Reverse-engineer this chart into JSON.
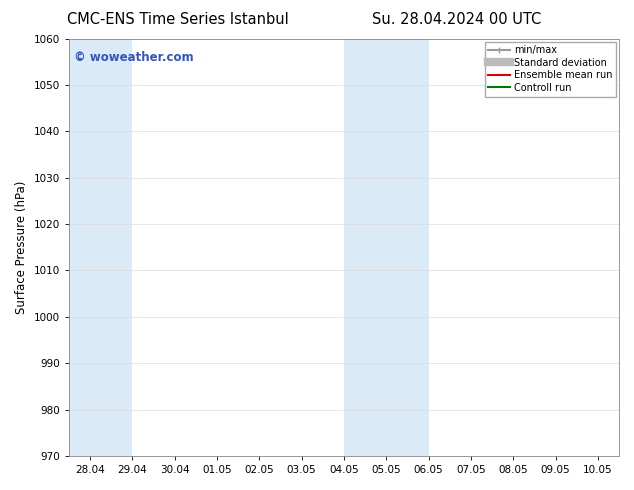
{
  "title_left": "CMC-ENS Time Series Istanbul",
  "title_right": "Su. 28.04.2024 00 UTC",
  "ylabel": "Surface Pressure (hPa)",
  "ylim": [
    970,
    1060
  ],
  "yticks": [
    970,
    980,
    990,
    1000,
    1010,
    1020,
    1030,
    1040,
    1050,
    1060
  ],
  "xtick_labels": [
    "28.04",
    "29.04",
    "30.04",
    "01.05",
    "02.05",
    "03.05",
    "04.05",
    "05.05",
    "06.05",
    "07.05",
    "08.05",
    "09.05",
    "10.05"
  ],
  "xtick_positions": [
    0,
    1,
    2,
    3,
    4,
    5,
    6,
    7,
    8,
    9,
    10,
    11,
    12
  ],
  "xlim": [
    -0.5,
    12.5
  ],
  "shaded_bands": [
    {
      "xmin": -0.5,
      "xmax": 1.0,
      "color": "#daeaf7"
    },
    {
      "xmin": 6.0,
      "xmax": 8.0,
      "color": "#daeaf7"
    }
  ],
  "watermark": "© woweather.com",
  "watermark_color": "#3355bb",
  "legend_items": [
    {
      "label": "min/max",
      "color": "#999999",
      "lw": 1.5
    },
    {
      "label": "Standard deviation",
      "color": "#bbbbbb",
      "lw": 6
    },
    {
      "label": "Ensemble mean run",
      "color": "#dd0000",
      "lw": 1.5
    },
    {
      "label": "Controll run",
      "color": "#007700",
      "lw": 1.5
    }
  ],
  "bg_color": "#ffffff",
  "plot_bg_color": "#ffffff",
  "grid_color": "#dddddd",
  "tick_label_fontsize": 7.5,
  "axis_label_fontsize": 8.5,
  "title_fontsize": 10.5
}
